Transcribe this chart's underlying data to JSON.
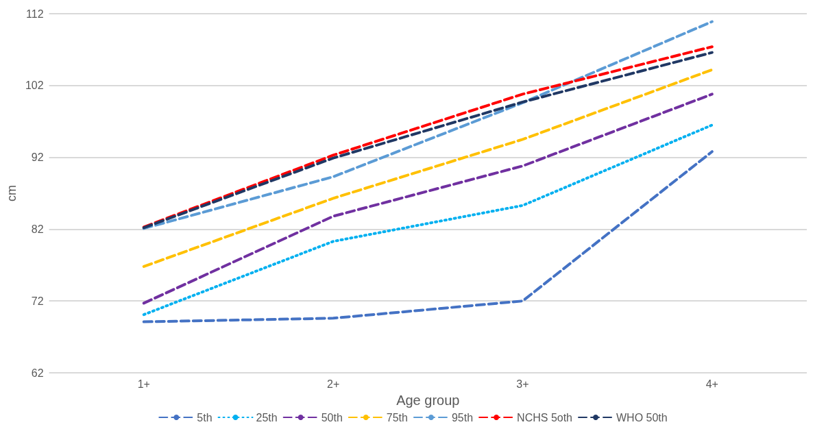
{
  "chart_data": {
    "type": "line",
    "xlabel": "Age group",
    "ylabel": "cm",
    "categories": [
      "1+",
      "2+",
      "3+",
      "4+"
    ],
    "ylim": [
      62,
      112
    ],
    "yticks": [
      62,
      72,
      82,
      92,
      102,
      112
    ],
    "grid": "y",
    "legend": "bottom",
    "marker": "none",
    "series": [
      {
        "name": "5th",
        "color": "#4472c4",
        "line_style": "dashed",
        "values": [
          69.1,
          69.6,
          72.0,
          92.8
        ]
      },
      {
        "name": "25th",
        "color": "#00b0f0",
        "line_style": "dotted",
        "values": [
          70.1,
          80.3,
          85.3,
          96.5
        ]
      },
      {
        "name": "50th",
        "color": "#7030a0",
        "line_style": "dashed",
        "values": [
          71.7,
          83.8,
          90.8,
          100.8
        ]
      },
      {
        "name": "75th",
        "color": "#ffc000",
        "line_style": "dashed",
        "values": [
          76.8,
          86.3,
          94.5,
          104.2
        ]
      },
      {
        "name": "95th",
        "color": "#5b9bd5",
        "line_style": "dashed",
        "values": [
          82.1,
          89.3,
          99.6,
          110.9
        ]
      },
      {
        "name": "NCHS 5oth",
        "color": "#ff0000",
        "line_style": "dashed",
        "values": [
          82.3,
          92.3,
          100.8,
          107.4
        ]
      },
      {
        "name": "WHO 50th",
        "color": "#203864",
        "line_style": "dashed",
        "values": [
          82.2,
          91.9,
          99.7,
          106.6
        ]
      }
    ]
  }
}
